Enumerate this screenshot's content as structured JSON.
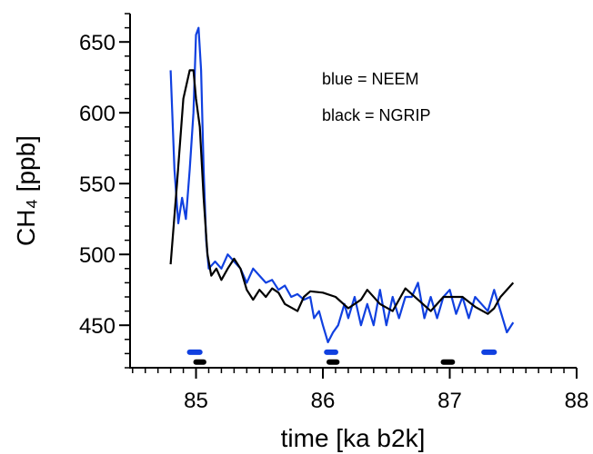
{
  "chart_data": {
    "type": "line",
    "xlabel": "time [ka b2k]",
    "ylabel": "CH₄ [ppb]",
    "annotations": [
      "blue = NEEM",
      "black = NGRIP"
    ],
    "xlim": [
      84.48,
      88
    ],
    "xticks": [
      85,
      86,
      87,
      88
    ],
    "x_minor_step": 0.1,
    "ylim": [
      420,
      670
    ],
    "yticks": [
      450,
      500,
      550,
      600,
      650
    ],
    "y_minor_step": 10,
    "series": [
      {
        "color": "#1040e0",
        "x": [
          84.8,
          84.83,
          84.86,
          84.89,
          84.92,
          84.95,
          84.98,
          85.0,
          85.02,
          85.04,
          85.06,
          85.08,
          85.1,
          85.15,
          85.2,
          85.25,
          85.3,
          85.35,
          85.4,
          85.45,
          85.5,
          85.55,
          85.6,
          85.65,
          85.7,
          85.75,
          85.8,
          85.85,
          85.9,
          85.93,
          85.97,
          86.0,
          86.04,
          86.08,
          86.12,
          86.17,
          86.2,
          86.25,
          86.3,
          86.35,
          86.4,
          86.45,
          86.5,
          86.55,
          86.6,
          86.65,
          86.7,
          86.75,
          86.8,
          86.85,
          86.9,
          86.95,
          87.0,
          87.05,
          87.1,
          87.15,
          87.2,
          87.25,
          87.3,
          87.35,
          87.4,
          87.45,
          87.5
        ],
        "values": [
          630,
          560,
          522,
          540,
          525,
          560,
          600,
          655,
          660,
          630,
          560,
          510,
          490,
          495,
          490,
          500,
          495,
          490,
          480,
          490,
          485,
          480,
          482,
          475,
          478,
          470,
          472,
          468,
          470,
          455,
          460,
          450,
          438,
          445,
          450,
          465,
          455,
          470,
          450,
          465,
          450,
          475,
          450,
          470,
          455,
          470,
          470,
          480,
          455,
          470,
          455,
          470,
          475,
          458,
          470,
          455,
          470,
          465,
          460,
          475,
          460,
          445,
          452
        ]
      },
      {
        "color": "#000000",
        "x": [
          84.8,
          84.85,
          84.9,
          84.95,
          84.98,
          85.0,
          85.03,
          85.06,
          85.09,
          85.12,
          85.16,
          85.2,
          85.25,
          85.3,
          85.35,
          85.4,
          85.45,
          85.5,
          85.55,
          85.6,
          85.65,
          85.7,
          85.8,
          85.85,
          85.9,
          86.0,
          86.1,
          86.2,
          86.3,
          86.35,
          86.45,
          86.55,
          86.65,
          86.75,
          86.85,
          86.95,
          87.0,
          87.1,
          87.2,
          87.3,
          87.35,
          87.4,
          87.5
        ],
        "values": [
          493,
          550,
          610,
          630,
          630,
          610,
          590,
          540,
          500,
          485,
          490,
          482,
          490,
          497,
          490,
          475,
          468,
          475,
          470,
          476,
          473,
          465,
          460,
          470,
          474,
          473,
          470,
          462,
          468,
          475,
          465,
          460,
          476,
          468,
          460,
          470,
          470,
          470,
          463,
          458,
          462,
          470,
          480
        ]
      }
    ],
    "intervals": [
      {
        "color": "#1040e0",
        "y": 431,
        "x": [
          [
            84.95,
            85.03
          ],
          [
            86.03,
            86.1
          ],
          [
            87.27,
            87.35
          ]
        ]
      },
      {
        "color": "#000000",
        "y": 424,
        "x": [
          [
            85.0,
            85.06
          ],
          [
            86.05,
            86.11
          ],
          [
            86.95,
            87.02
          ]
        ]
      }
    ]
  }
}
